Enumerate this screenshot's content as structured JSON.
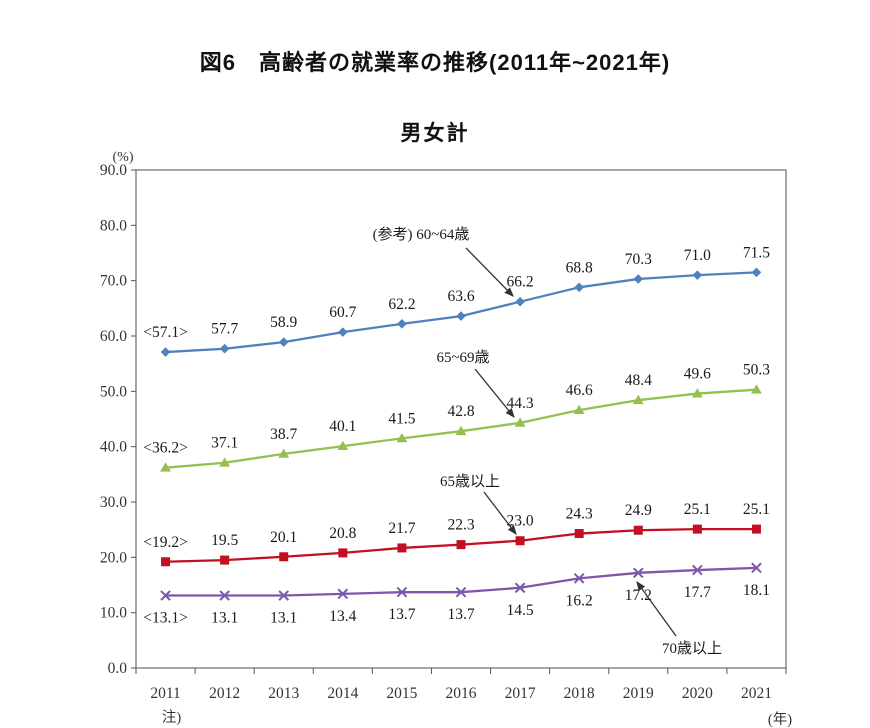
{
  "page": {
    "figure_title": "図6　高齢者の就業率の推移(2011年~2021年)",
    "chart_title": "男女計"
  },
  "chart_data": {
    "type": "line",
    "title": "図6　高齢者の就業率の推移(2011年~2021年)",
    "subtitle": "男女計",
    "x": [
      2011,
      2012,
      2013,
      2014,
      2015,
      2016,
      2017,
      2018,
      2019,
      2020,
      2021
    ],
    "xlabel": "(年)",
    "ylabel": "(%)",
    "x_note": "注)",
    "ylim": [
      0,
      90
    ],
    "ytick_step": 10,
    "grid": false,
    "legend_position": "inline-annotations",
    "first_value_bracketed": true,
    "series": [
      {
        "name": "60~64歳",
        "color": "#4F81BD",
        "marker": "diamond",
        "label_side": "above",
        "values": [
          57.1,
          57.7,
          58.9,
          60.7,
          62.2,
          63.6,
          66.2,
          68.8,
          70.3,
          71.0,
          71.5
        ]
      },
      {
        "name": "65~69歳",
        "color": "#94C04F",
        "marker": "triangle",
        "label_side": "above",
        "values": [
          36.2,
          37.1,
          38.7,
          40.1,
          41.5,
          42.8,
          44.3,
          46.6,
          48.4,
          49.6,
          50.3
        ]
      },
      {
        "name": "65歳以上",
        "color": "#C21022",
        "marker": "square",
        "label_side": "above",
        "values": [
          19.2,
          19.5,
          20.1,
          20.8,
          21.7,
          22.3,
          23.0,
          24.3,
          24.9,
          25.1,
          25.1
        ]
      },
      {
        "name": "70歳以上",
        "color": "#7E57A8",
        "marker": "x",
        "label_side": "below",
        "values": [
          13.1,
          13.1,
          13.1,
          13.4,
          13.7,
          13.7,
          14.5,
          16.2,
          17.2,
          17.7,
          18.1
        ]
      }
    ],
    "annotations": [
      {
        "text": "(参考) 60~64歳",
        "series": 0,
        "year": 2017
      },
      {
        "text": "65~69歳",
        "series": 1,
        "year": 2017
      },
      {
        "text": "65歳以上",
        "series": 2,
        "year": 2017
      },
      {
        "text": "70歳以上",
        "series": 3,
        "year": 2019
      }
    ],
    "axis_color": "#7f7f7f",
    "text_color": "#1a1a1a"
  }
}
